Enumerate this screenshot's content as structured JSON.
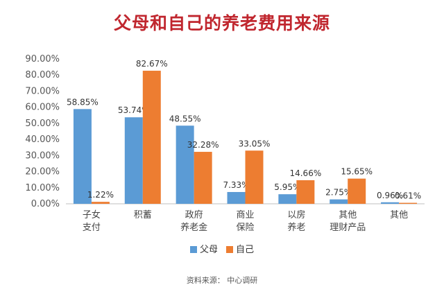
{
  "chart_data": {
    "type": "bar",
    "title": "父母和自己的养老费用来源",
    "categories": [
      [
        "子女",
        "支付"
      ],
      [
        "积蓄"
      ],
      [
        "政府",
        "养老金"
      ],
      [
        "商业",
        "保险"
      ],
      [
        "以房",
        "养老"
      ],
      [
        "其他",
        "理财产品"
      ],
      [
        "其他"
      ]
    ],
    "series": [
      {
        "name": "父母",
        "color": "#5b9bd5",
        "values": [
          58.85,
          53.74,
          48.55,
          7.33,
          5.95,
          2.75,
          0.96
        ],
        "labels": [
          "58.85%",
          "53.74%",
          "48.55%",
          "7.33%",
          "5.95%",
          "2.75%",
          "0.96%"
        ]
      },
      {
        "name": "自己",
        "color": "#ed7d31",
        "values": [
          1.22,
          82.67,
          32.28,
          33.05,
          14.66,
          15.65,
          0.61
        ],
        "labels": [
          "1.22%",
          "82.67%",
          "32.28%",
          "33.05%",
          "14.66%",
          "15.65%",
          "0.61%"
        ]
      }
    ],
    "ylim": [
      0,
      90
    ],
    "yticks": [
      "0.00%",
      "10.00%",
      "20.00%",
      "30.00%",
      "40.00%",
      "50.00%",
      "60.00%",
      "70.00%",
      "80.00%",
      "90.00%"
    ],
    "grid": false,
    "legend": "bottom-center"
  },
  "source": "资料来源：  中心调研"
}
